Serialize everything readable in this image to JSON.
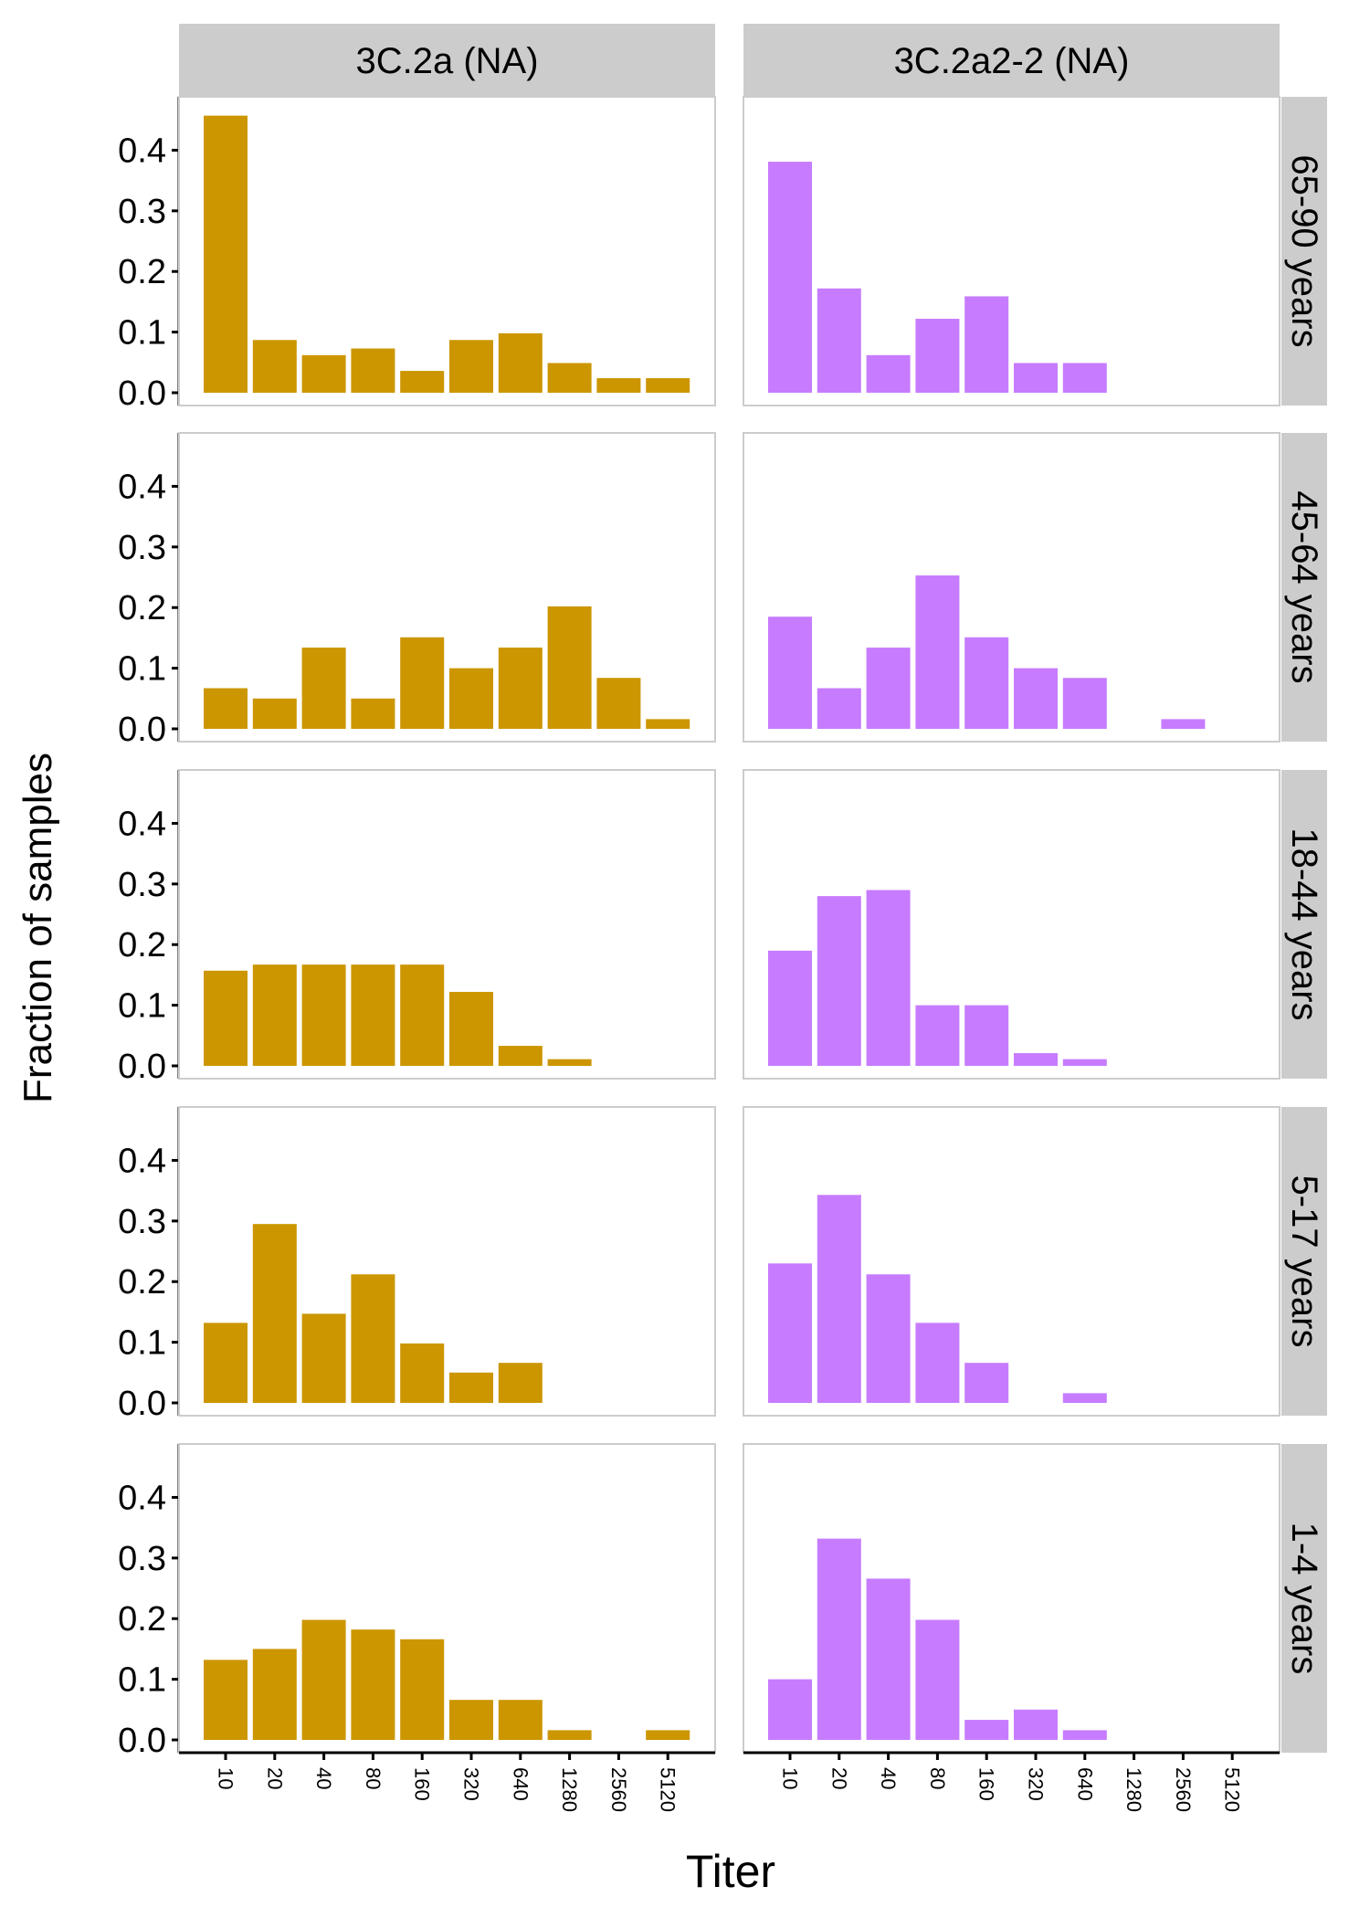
{
  "chart_data": {
    "type": "bar",
    "ylabel": "Fraction of samples",
    "xlabel": "Titer",
    "ylim": [
      0,
      0.47
    ],
    "y_ticks": [
      "0.0",
      "0.1",
      "0.2",
      "0.3",
      "0.4"
    ],
    "y_tick_values": [
      0,
      0.1,
      0.2,
      0.3,
      0.4
    ],
    "categories": [
      "10",
      "20",
      "40",
      "80",
      "160",
      "320",
      "640",
      "1280",
      "2560",
      "5120"
    ],
    "columns": [
      {
        "label": "3C.2a (NA)",
        "color": "#CC9600"
      },
      {
        "label": "3C.2a2-2 (NA)",
        "color": "#C77CFF"
      }
    ],
    "rows": [
      {
        "label": "65-90 years",
        "series": [
          {
            "values": [
              0.457,
              0.087,
              0.062,
              0.073,
              0.036,
              0.087,
              0.098,
              0.049,
              0.024,
              0.024
            ]
          },
          {
            "values": [
              0.381,
              0.172,
              0.062,
              0.122,
              0.159,
              0.049,
              0.049,
              0,
              0,
              0
            ]
          }
        ]
      },
      {
        "label": "45-64 years",
        "series": [
          {
            "values": [
              0.067,
              0.05,
              0.134,
              0.05,
              0.151,
              0.1,
              0.134,
              0.202,
              0.084,
              0.016
            ]
          },
          {
            "values": [
              0.185,
              0.067,
              0.134,
              0.253,
              0.151,
              0.1,
              0.084,
              0,
              0.016,
              0
            ]
          }
        ]
      },
      {
        "label": "18-44 years",
        "series": [
          {
            "values": [
              0.157,
              0.167,
              0.167,
              0.167,
              0.167,
              0.122,
              0.033,
              0.011,
              0,
              0
            ]
          },
          {
            "values": [
              0.19,
              0.28,
              0.29,
              0.1,
              0.1,
              0.021,
              0.011,
              0,
              0,
              0
            ]
          }
        ]
      },
      {
        "label": "5-17 years",
        "series": [
          {
            "values": [
              0.132,
              0.295,
              0.147,
              0.212,
              0.098,
              0.05,
              0.066,
              0,
              0,
              0
            ]
          },
          {
            "values": [
              0.23,
              0.343,
              0.212,
              0.132,
              0.066,
              0,
              0.016,
              0,
              0,
              0
            ]
          }
        ]
      },
      {
        "label": "1-4 years",
        "series": [
          {
            "values": [
              0.132,
              0.15,
              0.198,
              0.182,
              0.166,
              0.066,
              0.066,
              0.016,
              0,
              0.016
            ]
          },
          {
            "values": [
              0.1,
              0.332,
              0.266,
              0.198,
              0.033,
              0.05,
              0.016,
              0,
              0,
              0
            ]
          }
        ]
      }
    ]
  }
}
